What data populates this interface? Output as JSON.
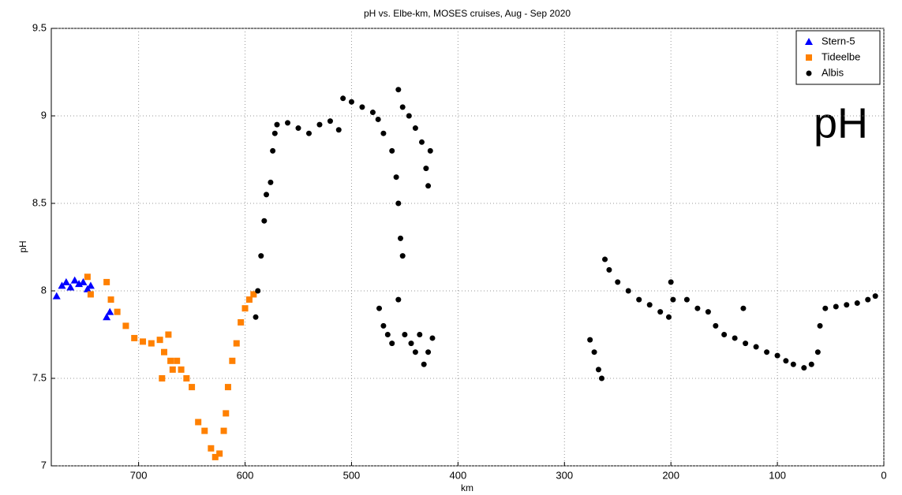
{
  "chart_data": {
    "type": "scatter",
    "title": "pH vs. Elbe-km, MOSES cruises, Aug - Sep 2020",
    "xlabel": "km",
    "ylabel": "pH",
    "annotation": "pH",
    "xlim": [
      782,
      0
    ],
    "xticks": [
      700,
      600,
      500,
      400,
      300,
      200,
      100,
      0
    ],
    "ylim": [
      7,
      9.5
    ],
    "yticks": [
      7,
      7.5,
      8,
      8.5,
      9,
      9.5
    ],
    "grid": true,
    "legend": "upper right",
    "series": [
      {
        "name": "Stern-5",
        "color": "#0000ff",
        "marker": "triangle",
        "x": [
          777,
          772,
          768,
          764,
          760,
          756,
          752,
          748,
          745,
          730,
          727
        ],
        "values": [
          7.97,
          8.03,
          8.05,
          8.02,
          8.06,
          8.04,
          8.05,
          8.01,
          8.03,
          7.85,
          7.88
        ]
      },
      {
        "name": "Tideelbe",
        "color": "#ff8000",
        "marker": "square",
        "x": [
          748,
          745,
          730,
          726,
          720,
          712,
          704,
          696,
          688,
          680,
          678,
          676,
          672,
          670,
          668,
          664,
          660,
          655,
          650,
          644,
          638,
          632,
          628,
          624,
          620,
          618,
          616,
          612,
          608,
          604,
          600,
          596,
          592
        ],
        "values": [
          8.08,
          7.98,
          8.05,
          7.95,
          7.88,
          7.8,
          7.73,
          7.71,
          7.7,
          7.72,
          7.5,
          7.65,
          7.75,
          7.6,
          7.55,
          7.6,
          7.55,
          7.5,
          7.45,
          7.25,
          7.2,
          7.1,
          7.05,
          7.07,
          7.2,
          7.3,
          7.45,
          7.6,
          7.7,
          7.82,
          7.9,
          7.95,
          7.98
        ]
      },
      {
        "name": "Albis",
        "color": "#000000",
        "marker": "circle",
        "x": [
          590,
          588,
          585,
          582,
          580,
          576,
          574,
          572,
          570,
          560,
          550,
          540,
          530,
          520,
          512,
          508,
          500,
          490,
          480,
          475,
          470,
          462,
          458,
          456,
          454,
          452,
          456,
          452,
          446,
          440,
          434,
          430,
          428,
          426,
          474,
          470,
          466,
          462,
          456,
          450,
          444,
          440,
          436,
          432,
          428,
          424,
          276,
          272,
          268,
          265,
          262,
          258,
          250,
          240,
          230,
          220,
          210,
          202,
          200,
          198,
          185,
          175,
          165,
          158,
          150,
          140,
          132,
          130,
          120,
          110,
          100,
          92,
          85,
          75,
          68,
          62,
          60,
          55,
          45,
          35,
          25,
          15,
          8
        ],
        "values": [
          7.85,
          8.0,
          8.2,
          8.4,
          8.55,
          8.62,
          8.8,
          8.9,
          8.95,
          8.96,
          8.93,
          8.9,
          8.95,
          8.97,
          8.92,
          9.1,
          9.08,
          9.05,
          9.02,
          8.98,
          8.9,
          8.8,
          8.65,
          8.5,
          8.3,
          8.2,
          9.15,
          9.05,
          9.0,
          8.93,
          8.85,
          8.7,
          8.6,
          8.8,
          7.9,
          7.8,
          7.75,
          7.7,
          7.95,
          7.75,
          7.7,
          7.65,
          7.75,
          7.58,
          7.65,
          7.73,
          7.72,
          7.65,
          7.55,
          7.5,
          8.18,
          8.12,
          8.05,
          8.0,
          7.95,
          7.92,
          7.88,
          7.85,
          8.05,
          7.95,
          7.95,
          7.9,
          7.88,
          7.8,
          7.75,
          7.73,
          7.9,
          7.7,
          7.68,
          7.65,
          7.63,
          7.6,
          7.58,
          7.56,
          7.58,
          7.65,
          7.8,
          7.9,
          7.91,
          7.92,
          7.93,
          7.95,
          7.97
        ]
      }
    ]
  }
}
